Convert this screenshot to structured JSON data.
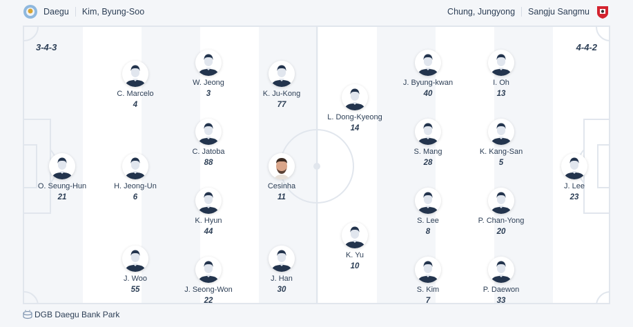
{
  "header": {
    "home_team": "Daegu",
    "home_coach": "Kim, Byung-Soo",
    "away_coach": "Chung, Jungyong",
    "away_team": "Sangju Sangmu",
    "home_logo_icon": "daegu-crest-icon",
    "away_logo_icon": "sangju-crest-icon"
  },
  "pitch": {
    "home_formation": "3-4-3",
    "away_formation": "4-4-2",
    "stripe_colors": [
      "#f4f6f9",
      "#ffffff"
    ],
    "line_color": "#e1e6ed"
  },
  "home_lines": [
    [
      {
        "name": "O. Seung-Hun",
        "number": "21"
      }
    ],
    [
      {
        "name": "C. Marcelo",
        "number": "4"
      },
      {
        "name": "H. Jeong-Un",
        "number": "6"
      },
      {
        "name": "J. Woo",
        "number": "55"
      }
    ],
    [
      {
        "name": "W. Jeong",
        "number": "3"
      },
      {
        "name": "C. Jatoba",
        "number": "88"
      },
      {
        "name": "K. Hyun",
        "number": "44"
      },
      {
        "name": "J. Seong-Won",
        "number": "22"
      }
    ],
    [
      {
        "name": "K. Ju-Kong",
        "number": "77"
      },
      {
        "name": "Cesinha",
        "number": "11",
        "photo": true
      },
      {
        "name": "J. Han",
        "number": "30"
      }
    ]
  ],
  "away_lines": [
    [
      {
        "name": "L. Dong-Kyeong",
        "number": "14"
      },
      {
        "name": "K. Yu",
        "number": "10"
      }
    ],
    [
      {
        "name": "J. Byung-kwan",
        "number": "40"
      },
      {
        "name": "S. Mang",
        "number": "28"
      },
      {
        "name": "S. Lee",
        "number": "8"
      },
      {
        "name": "S. Kim",
        "number": "7"
      }
    ],
    [
      {
        "name": "I. Oh",
        "number": "13"
      },
      {
        "name": "K. Kang-San",
        "number": "5"
      },
      {
        "name": "P. Chan-Yong",
        "number": "20"
      },
      {
        "name": "P. Daewon",
        "number": "33"
      }
    ],
    [
      {
        "name": "J. Lee",
        "number": "23"
      }
    ]
  ],
  "footer": {
    "venue": "DGB Daegu Bank Park",
    "venue_icon": "stadium-icon"
  }
}
